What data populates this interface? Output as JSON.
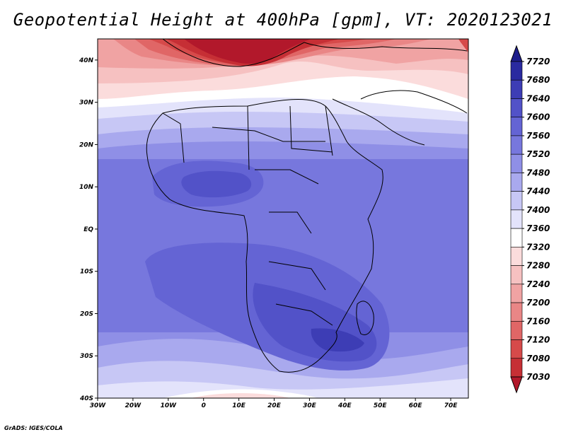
{
  "title": "Geopotential Height at 400hPa [gpm], VT: 2020123021",
  "footer": "GrADS: IGES/COLA",
  "chart_data": {
    "type": "contour_map",
    "variable": "Geopotential Height",
    "level": "400hPa",
    "units": "gpm",
    "valid_time": "2020123021",
    "lon_range": [
      -30,
      75
    ],
    "lat_range": [
      -40,
      45
    ],
    "x_ticks": [
      "30W",
      "20W",
      "10W",
      "0",
      "10E",
      "20E",
      "30E",
      "40E",
      "50E",
      "60E",
      "70E"
    ],
    "y_ticks": [
      "40N",
      "30N",
      "20N",
      "10N",
      "EQ",
      "10S",
      "20S",
      "30S",
      "40S"
    ],
    "colorbar": {
      "levels": [
        7030,
        7080,
        7120,
        7160,
        7200,
        7240,
        7280,
        7320,
        7360,
        7400,
        7440,
        7480,
        7520,
        7560,
        7600,
        7640,
        7680,
        7720
      ],
      "labels": [
        "7720",
        "7680",
        "7640",
        "7600",
        "7560",
        "7520",
        "7480",
        "7440",
        "7400",
        "7360",
        "7320",
        "7280",
        "7240",
        "7200",
        "7160",
        "7120",
        "7080",
        "7030"
      ],
      "colors": [
        "#b2182b",
        "#c62f35",
        "#d64a4a",
        "#e06666",
        "#e98686",
        "#f0a3a3",
        "#f6c1c1",
        "#fbdcdc",
        "#ffffff",
        "#e3e3fb",
        "#c7c7f5",
        "#a9a9ee",
        "#8f8fe6",
        "#7777dd",
        "#6464d4",
        "#5252c8",
        "#3d3db5",
        "#2a2aa0",
        "#1e1e8c"
      ]
    }
  }
}
